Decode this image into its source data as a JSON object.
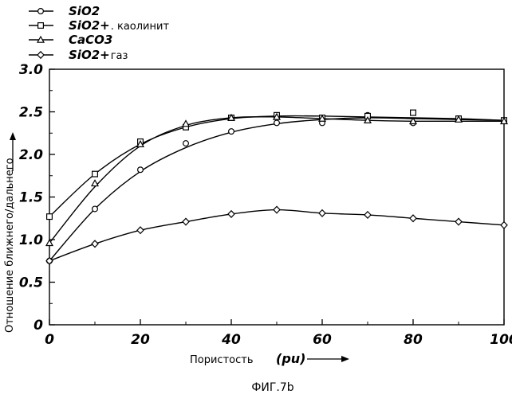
{
  "chart_data": {
    "type": "line",
    "title": "",
    "caption": "ФИГ.7b",
    "xlabel": "Пористость",
    "xunit": "(pu)",
    "ylabel": "Отношение ближнего/дальнего",
    "xlim": [
      0,
      100
    ],
    "ylim": [
      0,
      3.0
    ],
    "xticks": [
      0,
      20,
      40,
      60,
      80,
      100
    ],
    "yticks": [
      0,
      0.5,
      1.0,
      1.5,
      2.0,
      2.5,
      3.0
    ],
    "xtick_labels": [
      "0",
      "20",
      "40",
      "60",
      "80",
      "100"
    ],
    "ytick_labels": [
      "0",
      "0.5",
      "1.0",
      "1.5",
      "2.0",
      "2.5",
      "3.0"
    ],
    "grid": false,
    "legend_position": "top-left",
    "series": [
      {
        "name": "SiO2",
        "suffix": "",
        "marker": "circle",
        "points": [
          [
            0,
            0.75
          ],
          [
            10,
            1.36
          ],
          [
            20,
            1.82
          ],
          [
            30,
            2.13
          ],
          [
            40,
            2.27
          ],
          [
            50,
            2.37
          ],
          [
            60,
            2.37
          ],
          [
            70,
            2.46
          ],
          [
            80,
            2.37
          ],
          [
            90,
            2.42
          ],
          [
            100,
            2.4
          ]
        ],
        "curve": [
          [
            0,
            0.75
          ],
          [
            10,
            1.36
          ],
          [
            20,
            1.8
          ],
          [
            30,
            2.08
          ],
          [
            40,
            2.26
          ],
          [
            50,
            2.36
          ],
          [
            60,
            2.41
          ],
          [
            70,
            2.43
          ],
          [
            80,
            2.42
          ],
          [
            90,
            2.41
          ],
          [
            100,
            2.4
          ]
        ]
      },
      {
        "name": "SiO2+",
        "suffix": ". каолинит",
        "marker": "square",
        "points": [
          [
            0,
            1.27
          ],
          [
            10,
            1.77
          ],
          [
            20,
            2.15
          ],
          [
            30,
            2.32
          ],
          [
            40,
            2.43
          ],
          [
            50,
            2.46
          ],
          [
            60,
            2.43
          ],
          [
            70,
            2.45
          ],
          [
            80,
            2.49
          ],
          [
            90,
            2.42
          ],
          [
            100,
            2.4
          ]
        ],
        "curve": [
          [
            0,
            1.27
          ],
          [
            10,
            1.77
          ],
          [
            20,
            2.12
          ],
          [
            30,
            2.32
          ],
          [
            40,
            2.42
          ],
          [
            50,
            2.45
          ],
          [
            60,
            2.45
          ],
          [
            70,
            2.44
          ],
          [
            80,
            2.43
          ],
          [
            90,
            2.42
          ],
          [
            100,
            2.4
          ]
        ]
      },
      {
        "name": "CaCO3",
        "suffix": "",
        "marker": "triangle",
        "points": [
          [
            0,
            0.96
          ],
          [
            10,
            1.66
          ],
          [
            20,
            2.12
          ],
          [
            30,
            2.36
          ],
          [
            40,
            2.43
          ],
          [
            50,
            2.44
          ],
          [
            60,
            2.42
          ],
          [
            70,
            2.4
          ],
          [
            80,
            2.39
          ],
          [
            90,
            2.41
          ],
          [
            100,
            2.39
          ]
        ],
        "curve": [
          [
            0,
            0.96
          ],
          [
            10,
            1.62
          ],
          [
            20,
            2.1
          ],
          [
            30,
            2.34
          ],
          [
            40,
            2.43
          ],
          [
            50,
            2.44
          ],
          [
            60,
            2.42
          ],
          [
            70,
            2.4
          ],
          [
            80,
            2.39
          ],
          [
            90,
            2.39
          ],
          [
            100,
            2.39
          ]
        ]
      },
      {
        "name": "SiO2+",
        "suffix": " газ",
        "marker": "diamond",
        "points": [
          [
            0,
            0.75
          ],
          [
            10,
            0.95
          ],
          [
            20,
            1.11
          ],
          [
            30,
            1.21
          ],
          [
            40,
            1.3
          ],
          [
            50,
            1.35
          ],
          [
            60,
            1.31
          ],
          [
            70,
            1.29
          ],
          [
            80,
            1.25
          ],
          [
            90,
            1.21
          ],
          [
            100,
            1.17
          ]
        ],
        "curve": [
          [
            0,
            0.75
          ],
          [
            10,
            0.95
          ],
          [
            20,
            1.11
          ],
          [
            30,
            1.21
          ],
          [
            40,
            1.3
          ],
          [
            50,
            1.35
          ],
          [
            60,
            1.31
          ],
          [
            70,
            1.29
          ],
          [
            80,
            1.25
          ],
          [
            90,
            1.21
          ],
          [
            100,
            1.17
          ]
        ]
      }
    ]
  }
}
